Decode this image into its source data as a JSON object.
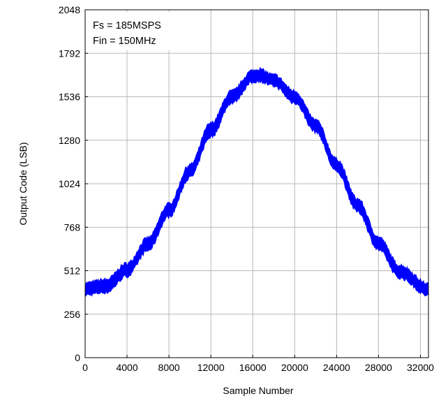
{
  "chart_data": {
    "type": "line",
    "title": "",
    "xlabel": "Sample Number",
    "ylabel": "Output Code (LSB)",
    "xlim": [
      0,
      32768
    ],
    "ylim": [
      0,
      2048
    ],
    "x_ticks": [
      0,
      4000,
      8000,
      12000,
      16000,
      20000,
      24000,
      28000,
      32000
    ],
    "y_ticks": [
      0,
      256,
      512,
      768,
      1024,
      1280,
      1536,
      1792,
      2048
    ],
    "x_tick_labels": [
      "0",
      "4000",
      "8000",
      "12000",
      "16000",
      "20000",
      "24000",
      "28000",
      "32000"
    ],
    "y_tick_labels": [
      "0",
      "256",
      "512",
      "768",
      "1024",
      "1280",
      "1536",
      "1792",
      "2048"
    ],
    "grid": true,
    "annotations": [
      "Fs = 185MSPS",
      "Fin = 150MHz"
    ],
    "series": [
      {
        "color": "#0000ff",
        "band_width_lsb": 70,
        "x": [
          0,
          2000,
          4000,
          6000,
          8000,
          10000,
          12000,
          14000,
          16000,
          16500,
          18000,
          20000,
          22000,
          24000,
          26000,
          28000,
          30000,
          32768
        ],
        "upper": [
          440,
          460,
          555,
          705,
          905,
          1135,
          1380,
          1570,
          1690,
          1700,
          1665,
          1570,
          1400,
          1170,
          935,
          710,
          545,
          435
        ],
        "lower": [
          370,
          385,
          480,
          630,
          830,
          1060,
          1300,
          1500,
          1620,
          1630,
          1600,
          1500,
          1330,
          1095,
          860,
          635,
          470,
          365
        ]
      }
    ]
  }
}
